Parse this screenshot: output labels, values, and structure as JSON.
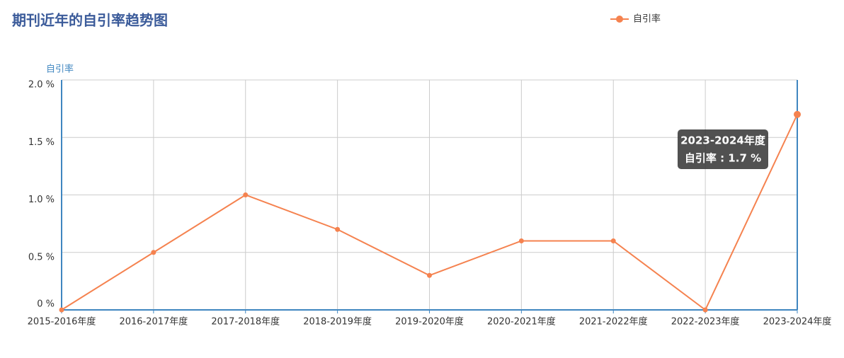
{
  "chart_data": {
    "type": "line",
    "title": "期刊近年的自引率趋势图",
    "y_label": "自引率",
    "categories": [
      "2015-2016年度",
      "2016-2017年度",
      "2017-2018年度",
      "2018-2019年度",
      "2019-2020年度",
      "2020-2021年度",
      "2021-2022年度",
      "2022-2023年度",
      "2023-2024年度"
    ],
    "series": [
      {
        "name": "自引率",
        "color": "#f5824f",
        "values": [
          0,
          0.5,
          1.0,
          0.7,
          0.3,
          0.6,
          0.6,
          0,
          1.7
        ]
      }
    ],
    "ylim": [
      0,
      2
    ],
    "yticks": [
      {
        "value": 0,
        "label": "0 %"
      },
      {
        "value": 0.5,
        "label": "0.5 %"
      },
      {
        "value": 1.0,
        "label": "1.0 %"
      },
      {
        "value": 1.5,
        "label": "1.5 %"
      },
      {
        "value": 2.0,
        "label": "2.0 %"
      }
    ],
    "grid": true,
    "tooltip": {
      "text": "自引率 : 1.7 %"
    }
  }
}
